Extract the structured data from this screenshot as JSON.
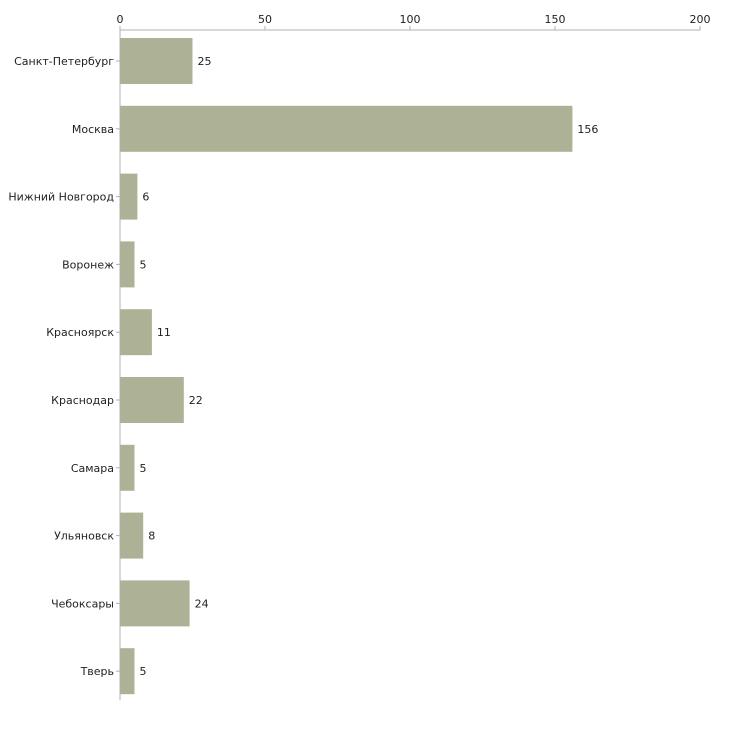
{
  "chart_data": {
    "type": "bar",
    "orientation": "horizontal",
    "title": "",
    "xlabel": "",
    "ylabel": "",
    "xlim": [
      0,
      200
    ],
    "xticks": [
      0,
      50,
      100,
      150,
      200
    ],
    "xtick_labels": [
      "0",
      "50",
      "100",
      "150",
      "200"
    ],
    "axis_position": "top",
    "grid": false,
    "bar_color": "#adb196",
    "categories": [
      "Санкт-Петербург",
      "Москва",
      "Нижний Новгород",
      "Воронеж",
      "Красноярск",
      "Краснодар",
      "Самара",
      "Ульяновск",
      "Чебоксары",
      "Тверь"
    ],
    "values": [
      25,
      156,
      6,
      5,
      11,
      22,
      5,
      8,
      24,
      5
    ],
    "value_labels": [
      "25",
      "156",
      "6",
      "5",
      "11",
      "22",
      "5",
      "8",
      "24",
      "5"
    ]
  }
}
